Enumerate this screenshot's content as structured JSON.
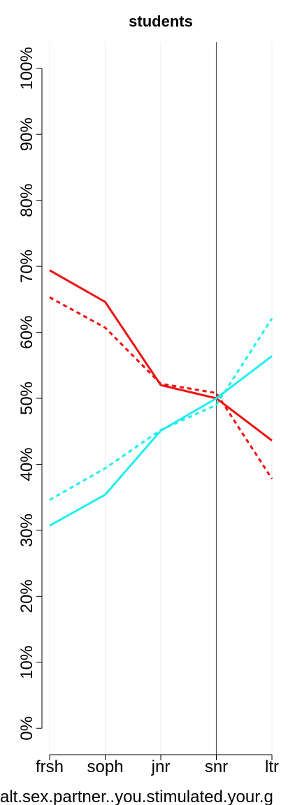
{
  "chart_data": {
    "type": "line",
    "title": "students",
    "x_label": "alt.sex.partner..you.stimulated.your.g",
    "categories": [
      "frsh",
      "soph",
      "jnr",
      "snr",
      "ltr"
    ],
    "series": [
      {
        "color": "#ee1111",
        "dash": false,
        "values": [
          69.4,
          64.6,
          52.0,
          50.0,
          43.6
        ]
      },
      {
        "color": "#ee1111",
        "dash": true,
        "values": [
          65.3,
          60.7,
          52.2,
          50.8,
          37.8
        ]
      },
      {
        "color": "#22eeee",
        "dash": false,
        "values": [
          30.7,
          35.4,
          45.1,
          50.0,
          56.4
        ]
      },
      {
        "color": "#22eeee",
        "dash": true,
        "values": [
          34.6,
          39.4,
          45.2,
          49.0,
          62.1
        ]
      }
    ],
    "ylim": [
      -4,
      104
    ],
    "yticks": [
      {
        "value": 0,
        "label": "0%"
      },
      {
        "value": 10,
        "label": "10%"
      },
      {
        "value": 20,
        "label": "20%"
      },
      {
        "value": 30,
        "label": "30%"
      },
      {
        "value": 40,
        "label": "40%"
      },
      {
        "value": 50,
        "label": "50%"
      },
      {
        "value": 60,
        "label": "60%"
      },
      {
        "value": 70,
        "label": "70%"
      },
      {
        "value": 80,
        "label": "80%"
      },
      {
        "value": 90,
        "label": "90%"
      },
      {
        "value": 100,
        "label": "100%"
      }
    ],
    "reference_line": "snr",
    "grid": true
  }
}
